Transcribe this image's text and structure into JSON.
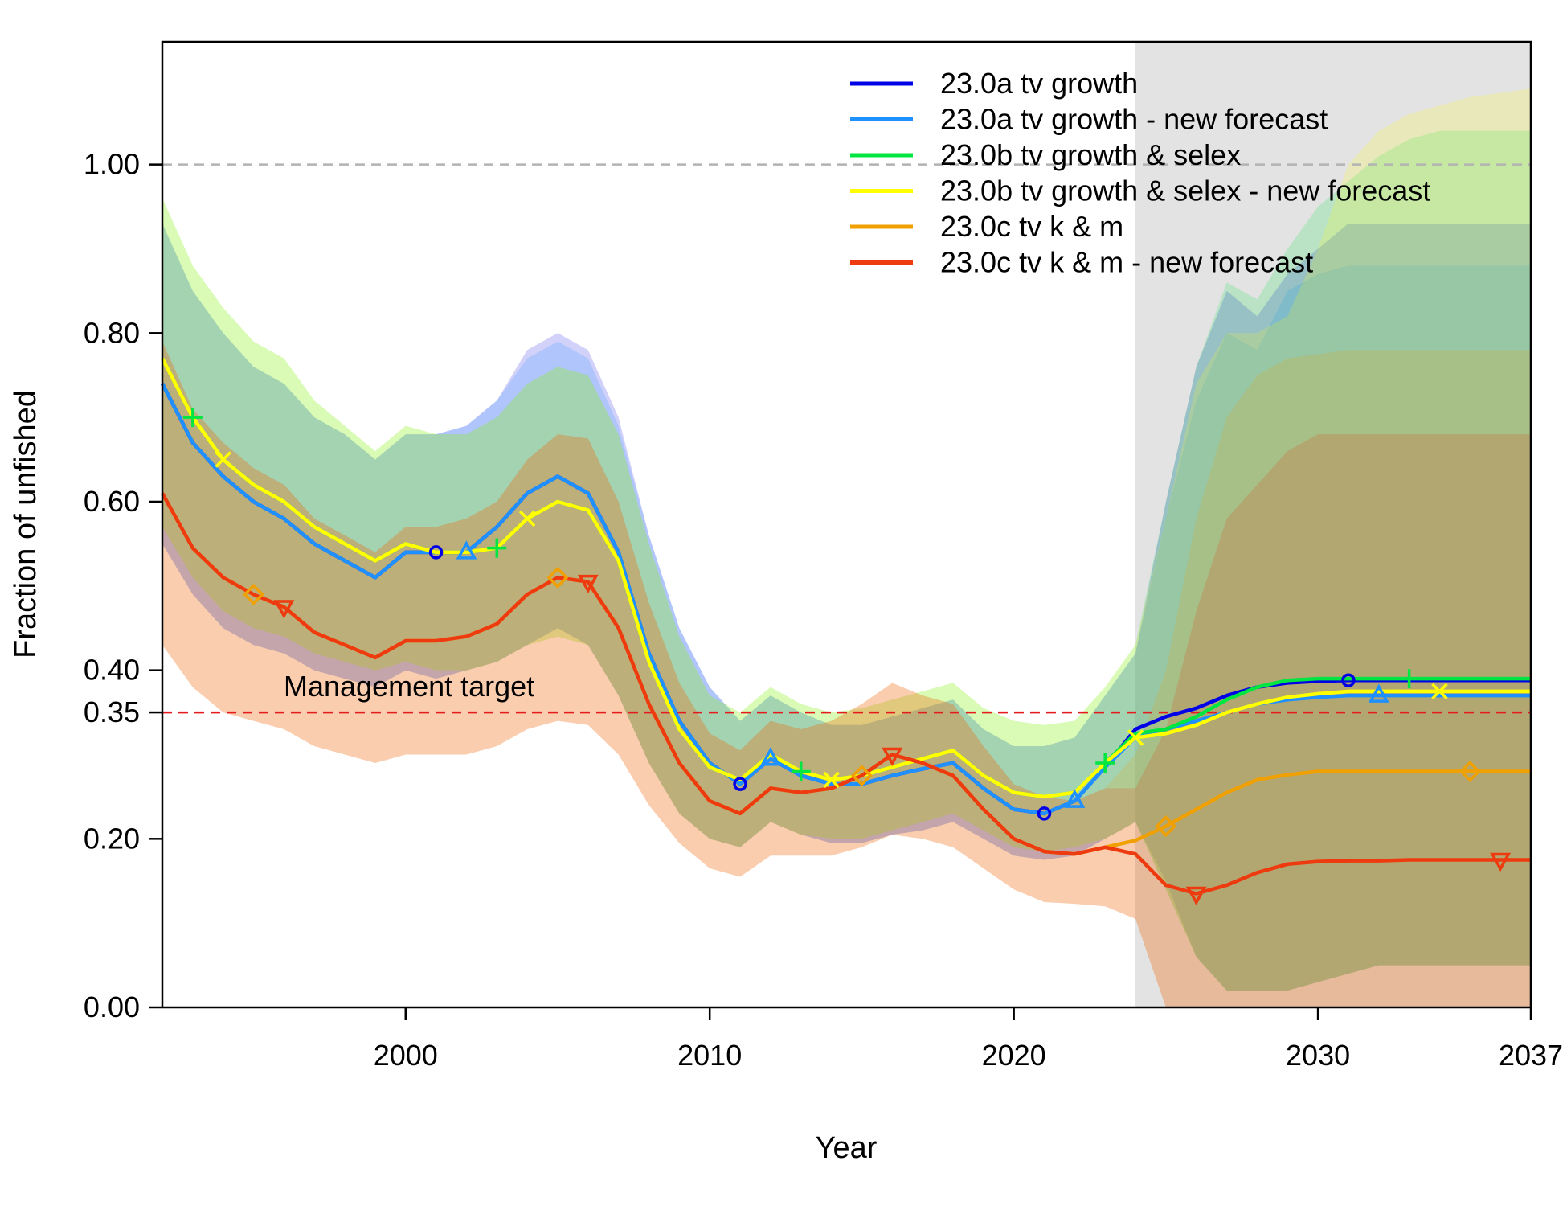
{
  "chart_data": {
    "type": "line",
    "title": "",
    "xlabel": "Year",
    "ylabel": "Fraction of unfished",
    "xlim": [
      1992,
      2037
    ],
    "ylim": [
      0,
      1.15
    ],
    "x_ticks": [
      2000,
      2010,
      2020,
      2030,
      2037
    ],
    "x_tick_labels": [
      "2000",
      "2010",
      "2020",
      "2030",
      "2037"
    ],
    "y_ticks": [
      0.0,
      0.2,
      0.35,
      0.4,
      0.6,
      0.8,
      1.0
    ],
    "y_tick_labels": [
      "0.00",
      "0.20",
      "0.35",
      "0.40",
      "0.60",
      "0.80",
      "1.00"
    ],
    "forecast_region": [
      2024,
      2037
    ],
    "reference_lines": [
      {
        "y": 1.0,
        "style": "dashed",
        "color": "#b3b3b3"
      },
      {
        "y": 0.35,
        "style": "dashed",
        "color": "#e41a1c",
        "label": "Management target"
      }
    ],
    "legend_placement": "top-right",
    "x": [
      1992,
      1993,
      1994,
      1995,
      1996,
      1997,
      1998,
      1999,
      2000,
      2001,
      2002,
      2003,
      2004,
      2005,
      2006,
      2007,
      2008,
      2009,
      2010,
      2011,
      2012,
      2013,
      2014,
      2015,
      2016,
      2017,
      2018,
      2019,
      2020,
      2021,
      2022,
      2023,
      2024,
      2025,
      2026,
      2027,
      2028,
      2029,
      2030,
      2031,
      2032,
      2033,
      2034,
      2035,
      2036,
      2037
    ],
    "series": [
      {
        "name": "23.0a tv growth",
        "color": "#0000e6",
        "marker": "circle",
        "values": [
          0.74,
          0.67,
          0.63,
          0.6,
          0.58,
          0.55,
          0.53,
          0.51,
          0.54,
          0.54,
          0.54,
          0.57,
          0.61,
          0.63,
          0.61,
          0.54,
          0.42,
          0.34,
          0.29,
          0.265,
          0.295,
          0.275,
          0.265,
          0.265,
          0.275,
          0.283,
          0.29,
          0.26,
          0.235,
          0.23,
          0.245,
          0.285,
          0.33,
          0.345,
          0.355,
          0.37,
          0.38,
          0.385,
          0.387,
          0.388,
          0.388,
          0.388,
          0.388,
          0.388,
          0.388,
          0.388
        ],
        "lower": [
          0.55,
          0.49,
          0.45,
          0.43,
          0.42,
          0.4,
          0.39,
          0.38,
          0.4,
          0.39,
          0.4,
          0.41,
          0.43,
          0.45,
          0.43,
          0.37,
          0.29,
          0.23,
          0.2,
          0.19,
          0.22,
          0.205,
          0.195,
          0.195,
          0.205,
          0.21,
          0.22,
          0.2,
          0.18,
          0.175,
          0.18,
          0.2,
          0.22,
          0.15,
          0.06,
          0.02,
          0.02,
          0.02,
          0.03,
          0.04,
          0.05,
          0.05,
          0.05,
          0.05,
          0.05,
          0.05
        ],
        "upper": [
          0.93,
          0.85,
          0.8,
          0.76,
          0.74,
          0.7,
          0.68,
          0.65,
          0.68,
          0.68,
          0.69,
          0.72,
          0.78,
          0.8,
          0.78,
          0.7,
          0.56,
          0.45,
          0.38,
          0.34,
          0.37,
          0.35,
          0.335,
          0.335,
          0.345,
          0.355,
          0.365,
          0.33,
          0.31,
          0.31,
          0.32,
          0.37,
          0.42,
          0.6,
          0.76,
          0.85,
          0.82,
          0.87,
          0.9,
          0.93,
          0.93,
          0.93,
          0.93,
          0.93,
          0.93,
          0.93
        ]
      },
      {
        "name": "23.0a tv growth - new forecast",
        "color": "#1e90ff",
        "marker": "triangle",
        "values": [
          0.74,
          0.67,
          0.63,
          0.6,
          0.58,
          0.55,
          0.53,
          0.51,
          0.54,
          0.54,
          0.54,
          0.57,
          0.61,
          0.63,
          0.61,
          0.54,
          0.42,
          0.34,
          0.29,
          0.265,
          0.295,
          0.275,
          0.265,
          0.265,
          0.275,
          0.283,
          0.29,
          0.26,
          0.235,
          0.23,
          0.245,
          0.285,
          0.32,
          0.33,
          0.34,
          0.35,
          0.36,
          0.365,
          0.368,
          0.37,
          0.37,
          0.37,
          0.37,
          0.37,
          0.37,
          0.37
        ],
        "lower": [
          0.55,
          0.49,
          0.45,
          0.43,
          0.42,
          0.4,
          0.39,
          0.38,
          0.4,
          0.39,
          0.4,
          0.41,
          0.43,
          0.45,
          0.43,
          0.37,
          0.29,
          0.23,
          0.2,
          0.19,
          0.22,
          0.205,
          0.195,
          0.195,
          0.205,
          0.21,
          0.22,
          0.2,
          0.18,
          0.175,
          0.18,
          0.2,
          0.22,
          0.14,
          0.06,
          0.02,
          0.02,
          0.02,
          0.03,
          0.04,
          0.05,
          0.05,
          0.05,
          0.05,
          0.05,
          0.05
        ],
        "upper": [
          0.93,
          0.85,
          0.8,
          0.76,
          0.74,
          0.7,
          0.68,
          0.65,
          0.68,
          0.68,
          0.69,
          0.72,
          0.77,
          0.79,
          0.77,
          0.69,
          0.56,
          0.45,
          0.38,
          0.34,
          0.37,
          0.35,
          0.335,
          0.335,
          0.345,
          0.355,
          0.365,
          0.33,
          0.31,
          0.31,
          0.32,
          0.37,
          0.42,
          0.58,
          0.72,
          0.8,
          0.78,
          0.85,
          0.87,
          0.88,
          0.88,
          0.88,
          0.88,
          0.88,
          0.88,
          0.88
        ]
      },
      {
        "name": "23.0b tv growth & selex",
        "color": "#00e640",
        "marker": "plus",
        "values": [
          0.77,
          0.7,
          0.65,
          0.62,
          0.6,
          0.57,
          0.55,
          0.53,
          0.55,
          0.54,
          0.54,
          0.545,
          0.58,
          0.6,
          0.59,
          0.53,
          0.41,
          0.33,
          0.285,
          0.27,
          0.3,
          0.28,
          0.27,
          0.275,
          0.285,
          0.295,
          0.305,
          0.275,
          0.255,
          0.25,
          0.255,
          0.29,
          0.325,
          0.33,
          0.345,
          0.365,
          0.38,
          0.388,
          0.39,
          0.39,
          0.39,
          0.39,
          0.39,
          0.39,
          0.39,
          0.39
        ],
        "lower": [
          0.57,
          0.51,
          0.47,
          0.45,
          0.44,
          0.42,
          0.41,
          0.4,
          0.41,
          0.4,
          0.4,
          0.41,
          0.43,
          0.44,
          0.43,
          0.37,
          0.29,
          0.23,
          0.2,
          0.19,
          0.22,
          0.205,
          0.2,
          0.2,
          0.21,
          0.22,
          0.23,
          0.21,
          0.19,
          0.185,
          0.19,
          0.2,
          0.22,
          0.14,
          0.06,
          0.02,
          0.02,
          0.02,
          0.03,
          0.04,
          0.05,
          0.05,
          0.05,
          0.05,
          0.05,
          0.05
        ],
        "upper": [
          0.96,
          0.88,
          0.83,
          0.79,
          0.77,
          0.72,
          0.69,
          0.66,
          0.69,
          0.68,
          0.68,
          0.7,
          0.74,
          0.76,
          0.75,
          0.68,
          0.55,
          0.44,
          0.37,
          0.35,
          0.38,
          0.36,
          0.35,
          0.355,
          0.365,
          0.375,
          0.385,
          0.355,
          0.34,
          0.335,
          0.34,
          0.38,
          0.43,
          0.6,
          0.76,
          0.86,
          0.84,
          0.9,
          0.95,
          0.98,
          1.01,
          1.03,
          1.04,
          1.04,
          1.04,
          1.04
        ]
      },
      {
        "name": "23.0b tv growth & selex - new forecast",
        "color": "#ffff00",
        "marker": "x",
        "values": [
          0.77,
          0.7,
          0.65,
          0.62,
          0.6,
          0.57,
          0.55,
          0.53,
          0.55,
          0.54,
          0.54,
          0.545,
          0.58,
          0.6,
          0.59,
          0.53,
          0.41,
          0.33,
          0.285,
          0.27,
          0.3,
          0.28,
          0.27,
          0.275,
          0.285,
          0.295,
          0.305,
          0.275,
          0.255,
          0.25,
          0.255,
          0.29,
          0.32,
          0.325,
          0.335,
          0.35,
          0.36,
          0.368,
          0.372,
          0.375,
          0.375,
          0.375,
          0.375,
          0.375,
          0.375,
          0.375
        ],
        "lower": [
          0.57,
          0.51,
          0.47,
          0.45,
          0.44,
          0.42,
          0.41,
          0.4,
          0.41,
          0.4,
          0.4,
          0.41,
          0.43,
          0.44,
          0.43,
          0.37,
          0.29,
          0.23,
          0.2,
          0.19,
          0.22,
          0.205,
          0.2,
          0.2,
          0.21,
          0.22,
          0.23,
          0.21,
          0.19,
          0.185,
          0.19,
          0.2,
          0.22,
          0.14,
          0.06,
          0.02,
          0.02,
          0.02,
          0.03,
          0.04,
          0.05,
          0.05,
          0.05,
          0.05,
          0.05,
          0.05
        ],
        "upper": [
          0.96,
          0.88,
          0.83,
          0.79,
          0.77,
          0.72,
          0.69,
          0.66,
          0.69,
          0.68,
          0.68,
          0.7,
          0.74,
          0.76,
          0.75,
          0.68,
          0.55,
          0.44,
          0.37,
          0.35,
          0.38,
          0.36,
          0.35,
          0.355,
          0.365,
          0.375,
          0.385,
          0.355,
          0.34,
          0.335,
          0.34,
          0.38,
          0.43,
          0.58,
          0.74,
          0.8,
          0.8,
          0.82,
          0.9,
          1.0,
          1.04,
          1.06,
          1.07,
          1.08,
          1.085,
          1.09
        ]
      },
      {
        "name": "23.0c tv k & m",
        "color": "#f0a000",
        "marker": "diamond",
        "values": [
          0.61,
          0.545,
          0.51,
          0.49,
          0.475,
          0.445,
          0.43,
          0.415,
          0.435,
          0.435,
          0.44,
          0.455,
          0.49,
          0.51,
          0.505,
          0.45,
          0.36,
          0.29,
          0.245,
          0.23,
          0.26,
          0.255,
          0.26,
          0.275,
          0.3,
          0.29,
          0.275,
          0.235,
          0.2,
          0.185,
          0.182,
          0.19,
          0.198,
          0.215,
          0.235,
          0.255,
          0.27,
          0.276,
          0.28,
          0.28,
          0.28,
          0.28,
          0.28,
          0.28,
          0.28,
          0.28
        ],
        "lower": [
          0.43,
          0.38,
          0.35,
          0.34,
          0.33,
          0.31,
          0.3,
          0.29,
          0.3,
          0.3,
          0.3,
          0.31,
          0.33,
          0.34,
          0.335,
          0.3,
          0.24,
          0.195,
          0.165,
          0.155,
          0.18,
          0.18,
          0.18,
          0.19,
          0.205,
          0.2,
          0.19,
          0.165,
          0.14,
          0.125,
          0.123,
          0.12,
          0.105,
          0.0,
          0.0,
          0.0,
          0.0,
          0.0,
          0.0,
          0.0,
          0.0,
          0.0,
          0.0,
          0.0,
          0.0,
          0.0
        ],
        "upper": [
          0.79,
          0.71,
          0.67,
          0.64,
          0.62,
          0.58,
          0.56,
          0.54,
          0.57,
          0.57,
          0.58,
          0.6,
          0.65,
          0.68,
          0.675,
          0.6,
          0.48,
          0.385,
          0.325,
          0.305,
          0.34,
          0.33,
          0.34,
          0.36,
          0.385,
          0.37,
          0.36,
          0.31,
          0.265,
          0.25,
          0.245,
          0.26,
          0.3,
          0.4,
          0.58,
          0.7,
          0.75,
          0.77,
          0.775,
          0.78,
          0.78,
          0.78,
          0.78,
          0.78,
          0.78,
          0.78
        ]
      },
      {
        "name": "23.0c tv k & m - new forecast",
        "color": "#ee3a0f",
        "marker": "triangle-down",
        "values": [
          0.61,
          0.545,
          0.51,
          0.49,
          0.475,
          0.445,
          0.43,
          0.415,
          0.435,
          0.435,
          0.44,
          0.455,
          0.49,
          0.51,
          0.505,
          0.45,
          0.36,
          0.29,
          0.245,
          0.23,
          0.26,
          0.255,
          0.26,
          0.275,
          0.3,
          0.29,
          0.275,
          0.235,
          0.2,
          0.185,
          0.182,
          0.19,
          0.182,
          0.145,
          0.135,
          0.145,
          0.16,
          0.17,
          0.173,
          0.174,
          0.174,
          0.175,
          0.175,
          0.175,
          0.175,
          0.175
        ],
        "lower": [
          0.43,
          0.38,
          0.35,
          0.34,
          0.33,
          0.31,
          0.3,
          0.29,
          0.3,
          0.3,
          0.3,
          0.31,
          0.33,
          0.34,
          0.335,
          0.3,
          0.24,
          0.195,
          0.165,
          0.155,
          0.18,
          0.18,
          0.18,
          0.19,
          0.205,
          0.2,
          0.19,
          0.165,
          0.14,
          0.125,
          0.123,
          0.12,
          0.105,
          0.0,
          0.0,
          0.0,
          0.0,
          0.0,
          0.0,
          0.0,
          0.0,
          0.0,
          0.0,
          0.0,
          0.0,
          0.0
        ],
        "upper": [
          0.79,
          0.71,
          0.67,
          0.64,
          0.62,
          0.58,
          0.56,
          0.54,
          0.57,
          0.57,
          0.58,
          0.6,
          0.65,
          0.68,
          0.675,
          0.6,
          0.48,
          0.385,
          0.325,
          0.305,
          0.34,
          0.33,
          0.34,
          0.36,
          0.385,
          0.37,
          0.36,
          0.31,
          0.265,
          0.25,
          0.245,
          0.26,
          0.26,
          0.33,
          0.47,
          0.58,
          0.62,
          0.66,
          0.68,
          0.68,
          0.68,
          0.68,
          0.68,
          0.68,
          0.68,
          0.68
        ]
      }
    ],
    "markers": [
      {
        "series": 0,
        "x": [
          2001,
          2011,
          2021,
          2031
        ]
      },
      {
        "series": 1,
        "x": [
          2002,
          2012,
          2022,
          2032
        ]
      },
      {
        "series": 2,
        "x": [
          1993,
          2003,
          2013,
          2023,
          2033
        ]
      },
      {
        "series": 3,
        "x": [
          1994,
          2004,
          2014,
          2024,
          2034
        ]
      },
      {
        "series": 4,
        "x": [
          1995,
          2005,
          2015,
          2025,
          2035
        ]
      },
      {
        "series": 5,
        "x": [
          1996,
          2006,
          2016,
          2026,
          2036
        ]
      }
    ]
  }
}
